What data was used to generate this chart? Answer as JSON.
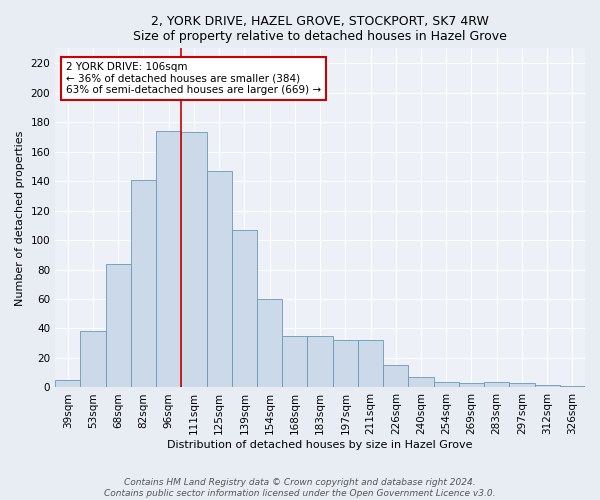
{
  "title_line1": "2, YORK DRIVE, HAZEL GROVE, STOCKPORT, SK7 4RW",
  "title_line2": "Size of property relative to detached houses in Hazel Grove",
  "xlabel": "Distribution of detached houses by size in Hazel Grove",
  "ylabel": "Number of detached properties",
  "categories": [
    "39sqm",
    "53sqm",
    "68sqm",
    "82sqm",
    "96sqm",
    "111sqm",
    "125sqm",
    "139sqm",
    "154sqm",
    "168sqm",
    "183sqm",
    "197sqm",
    "211sqm",
    "226sqm",
    "240sqm",
    "254sqm",
    "269sqm",
    "283sqm",
    "297sqm",
    "312sqm",
    "326sqm"
  ],
  "values": [
    5,
    38,
    84,
    141,
    174,
    173,
    147,
    107,
    60,
    35,
    35,
    32,
    32,
    15,
    7,
    4,
    3,
    4,
    3,
    2,
    1
  ],
  "bar_color": "#ccd9e8",
  "bar_edge_color": "#6699bb",
  "vline_x_index": 4.5,
  "vline_color": "#cc0000",
  "annotation_text": "2 YORK DRIVE: 106sqm\n← 36% of detached houses are smaller (384)\n63% of semi-detached houses are larger (669) →",
  "annotation_box_color": "#ffffff",
  "annotation_box_edge_color": "#cc0000",
  "ylim": [
    0,
    230
  ],
  "yticks": [
    0,
    20,
    40,
    60,
    80,
    100,
    120,
    140,
    160,
    180,
    200,
    220
  ],
  "footer_line1": "Contains HM Land Registry data © Crown copyright and database right 2024.",
  "footer_line2": "Contains public sector information licensed under the Open Government Licence v3.0.",
  "bg_color": "#e8edf4",
  "plot_bg_color": "#edf1f7",
  "grid_color": "#ffffff",
  "title_fontsize": 9,
  "xlabel_fontsize": 8,
  "ylabel_fontsize": 8,
  "tick_fontsize": 7.5,
  "footer_fontsize": 6.5,
  "annotation_fontsize": 7.5
}
